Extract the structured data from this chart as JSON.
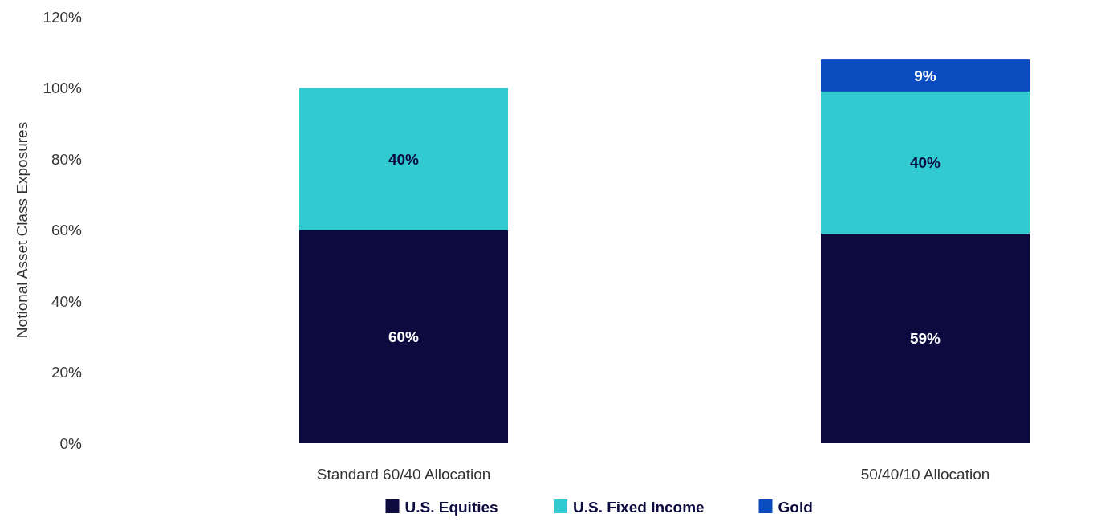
{
  "chart_data": {
    "type": "bar",
    "stacked": true,
    "ylabel": "Notional Asset Class Exposures",
    "categories": [
      "Standard 60/40 Allocation",
      "50/40/10 Allocation"
    ],
    "series": [
      {
        "name": "U.S. Equities",
        "color": "#0c0a3e",
        "values": [
          60,
          59
        ],
        "value_labels": [
          "60%",
          "59%"
        ]
      },
      {
        "name": "U.S. Fixed Income",
        "color": "#30cad0",
        "values": [
          40,
          40
        ],
        "value_labels": [
          "40%",
          "40%"
        ]
      },
      {
        "name": "Gold",
        "color": "#0a4cc0",
        "values": [
          null,
          9
        ],
        "value_labels": [
          null,
          "9%"
        ]
      }
    ],
    "ylim": [
      0,
      120
    ],
    "yticks": [
      {
        "value": 0,
        "label": "0%"
      },
      {
        "value": 20,
        "label": "20%"
      },
      {
        "value": 40,
        "label": "40%"
      },
      {
        "value": 60,
        "label": "60%"
      },
      {
        "value": 80,
        "label": "80%"
      },
      {
        "value": 100,
        "label": "100%"
      },
      {
        "value": 120,
        "label": "120%"
      }
    ],
    "legend": "bottom",
    "grid": false
  }
}
